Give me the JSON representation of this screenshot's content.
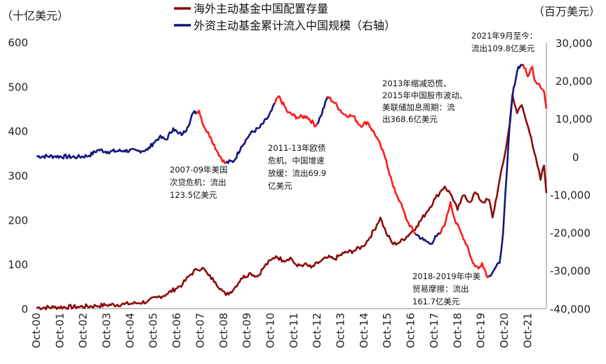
{
  "chart_data": {
    "type": "line",
    "left_unit": "（十亿美元）",
    "right_unit": "（百万美元）",
    "x_ticks": [
      "Oct-00",
      "Oct-01",
      "Oct-02",
      "Oct-03",
      "Oct-04",
      "Oct-05",
      "Oct-06",
      "Oct-07",
      "Oct-08",
      "Oct-09",
      "Oct-10",
      "Oct-11",
      "Oct-12",
      "Oct-13",
      "Oct-14",
      "Oct-15",
      "Oct-16",
      "Oct-17",
      "Oct-18",
      "Oct-19",
      "Oct-20",
      "Oct-21"
    ],
    "x_range": [
      2000.75,
      2022.55
    ],
    "y_left": {
      "min": 0,
      "max": 600,
      "ticks": [
        "0",
        "100",
        "200",
        "300",
        "400",
        "500",
        "600"
      ]
    },
    "y_right": {
      "min": -40000,
      "max": 30000,
      "ticks": [
        "-40,000",
        "-30,000",
        "-20,000",
        "-10,000",
        "0",
        "10,000",
        "20,000",
        "30,000"
      ]
    },
    "colors": {
      "holdings": "#8B0A0A",
      "flows": "#14167D",
      "highlight": "#FF1A1A"
    },
    "series": [
      {
        "name": "海外主动基金中国配置存量",
        "axis": "left",
        "color": "#8B0A0A",
        "points": [
          [
            2000.75,
            2
          ],
          [
            2001.5,
            3
          ],
          [
            2002.5,
            4
          ],
          [
            2003.3,
            6
          ],
          [
            2003.75,
            8
          ],
          [
            2004.5,
            10
          ],
          [
            2005.0,
            12
          ],
          [
            2005.5,
            16
          ],
          [
            2005.9,
            25
          ],
          [
            2006.3,
            32
          ],
          [
            2006.7,
            45
          ],
          [
            2007.0,
            55
          ],
          [
            2007.3,
            75
          ],
          [
            2007.6,
            88
          ],
          [
            2007.85,
            92
          ],
          [
            2008.1,
            75
          ],
          [
            2008.4,
            60
          ],
          [
            2008.7,
            40
          ],
          [
            2008.85,
            30
          ],
          [
            2009.2,
            45
          ],
          [
            2009.5,
            68
          ],
          [
            2009.9,
            80
          ],
          [
            2010.2,
            72
          ],
          [
            2010.5,
            95
          ],
          [
            2010.8,
            110
          ],
          [
            2011.0,
            118
          ],
          [
            2011.3,
            108
          ],
          [
            2011.6,
            115
          ],
          [
            2011.9,
            95
          ],
          [
            2012.2,
            100
          ],
          [
            2012.5,
            92
          ],
          [
            2012.85,
            105
          ],
          [
            2013.2,
            115
          ],
          [
            2013.5,
            112
          ],
          [
            2013.9,
            125
          ],
          [
            2014.3,
            130
          ],
          [
            2014.7,
            140
          ],
          [
            2015.0,
            160
          ],
          [
            2015.3,
            188
          ],
          [
            2015.45,
            205
          ],
          [
            2015.7,
            170
          ],
          [
            2016.0,
            145
          ],
          [
            2016.3,
            150
          ],
          [
            2016.7,
            168
          ],
          [
            2017.0,
            185
          ],
          [
            2017.4,
            215
          ],
          [
            2017.8,
            248
          ],
          [
            2018.0,
            262
          ],
          [
            2018.2,
            275
          ],
          [
            2018.5,
            255
          ],
          [
            2018.75,
            222
          ],
          [
            2019.0,
            255
          ],
          [
            2019.3,
            240
          ],
          [
            2019.5,
            262
          ],
          [
            2019.8,
            240
          ],
          [
            2020.1,
            245
          ],
          [
            2020.25,
            205
          ],
          [
            2020.5,
            275
          ],
          [
            2020.75,
            340
          ],
          [
            2021.0,
            420
          ],
          [
            2021.1,
            482
          ],
          [
            2021.3,
            440
          ],
          [
            2021.5,
            458
          ],
          [
            2021.7,
            420
          ],
          [
            2021.9,
            385
          ],
          [
            2022.1,
            340
          ],
          [
            2022.3,
            290
          ],
          [
            2022.45,
            322
          ],
          [
            2022.55,
            260
          ]
        ]
      },
      {
        "name": "外资主动基金累计流入中国规模（右轴）",
        "axis": "right",
        "color": "#14167D",
        "points": [
          [
            2000.75,
            0
          ],
          [
            2001.5,
            0
          ],
          [
            2002.5,
            -200
          ],
          [
            2003.0,
            200
          ],
          [
            2003.4,
            1700
          ],
          [
            2003.8,
            1200
          ],
          [
            2004.5,
            1500
          ],
          [
            2005.1,
            1400
          ],
          [
            2005.5,
            1700
          ],
          [
            2005.75,
            3500
          ],
          [
            2006.0,
            5000
          ],
          [
            2006.3,
            4400
          ],
          [
            2006.6,
            7400
          ],
          [
            2006.8,
            6000
          ],
          [
            2007.0,
            5800
          ],
          [
            2007.2,
            7600
          ],
          [
            2007.45,
            11400
          ],
          [
            2007.7,
            12000
          ],
          [
            2007.9,
            8000
          ],
          [
            2008.2,
            5000
          ],
          [
            2008.5,
            1000
          ],
          [
            2008.8,
            -1800
          ],
          [
            2009.2,
            -1200
          ],
          [
            2009.5,
            2500
          ],
          [
            2009.9,
            6000
          ],
          [
            2010.3,
            7600
          ],
          [
            2010.6,
            9800
          ],
          [
            2010.8,
            12000
          ],
          [
            2011.1,
            15800
          ],
          [
            2011.5,
            11500
          ],
          [
            2011.9,
            10200
          ],
          [
            2012.3,
            10500
          ],
          [
            2012.7,
            8000
          ],
          [
            2012.9,
            10500
          ],
          [
            2013.2,
            15700
          ],
          [
            2013.5,
            14000
          ],
          [
            2013.9,
            11000
          ],
          [
            2014.3,
            10500
          ],
          [
            2014.6,
            8000
          ],
          [
            2014.9,
            9000
          ],
          [
            2015.3,
            5000
          ],
          [
            2015.7,
            -1000
          ],
          [
            2016.0,
            -8000
          ],
          [
            2016.3,
            -12000
          ],
          [
            2016.6,
            -17000
          ],
          [
            2016.9,
            -20000
          ],
          [
            2017.3,
            -22000
          ],
          [
            2017.6,
            -23000
          ],
          [
            2017.85,
            -21000
          ],
          [
            2018.0,
            -20500
          ],
          [
            2018.25,
            -17000
          ],
          [
            2018.45,
            -12000
          ],
          [
            2018.65,
            -17000
          ],
          [
            2018.9,
            -20000
          ],
          [
            2019.2,
            -24000
          ],
          [
            2019.4,
            -28000
          ],
          [
            2019.65,
            -29500
          ],
          [
            2019.8,
            -28000
          ],
          [
            2020.05,
            -31800
          ],
          [
            2020.35,
            -29500
          ],
          [
            2020.55,
            -28000
          ],
          [
            2020.7,
            -20000
          ],
          [
            2020.85,
            -5000
          ],
          [
            2021.0,
            10000
          ],
          [
            2021.15,
            18000
          ],
          [
            2021.35,
            23500
          ],
          [
            2021.55,
            24200
          ],
          [
            2021.75,
            21000
          ],
          [
            2021.95,
            23500
          ],
          [
            2022.05,
            20000
          ],
          [
            2022.25,
            19000
          ],
          [
            2022.45,
            17000
          ],
          [
            2022.55,
            12500
          ]
        ]
      }
    ],
    "outflow_segments": [
      [
        2007.6,
        2008.8
      ],
      [
        2010.9,
        2012.7
      ],
      [
        2013.2,
        2016.9
      ],
      [
        2018.0,
        2020.05
      ],
      [
        2021.55,
        2022.55
      ]
    ],
    "annotations": [
      {
        "lines": [
          "2007-09年美国",
          "次贷危机：流出",
          "123.5亿美元"
        ]
      },
      {
        "lines": [
          "2011-13年欧债",
          "危机、中国增速",
          "放缓：流出69.9",
          "亿美元"
        ]
      },
      {
        "lines": [
          "2013年缩减恐慌、",
          "2015年中国股市波动、",
          "美联储加息周期：流",
          "出368.6亿美元"
        ]
      },
      {
        "lines": [
          "2018-2019年中美",
          "贸易摩擦：流出",
          "161.7亿美元"
        ]
      },
      {
        "lines": [
          "2021年9月至今：",
          "流出109.8亿美元"
        ]
      }
    ]
  }
}
